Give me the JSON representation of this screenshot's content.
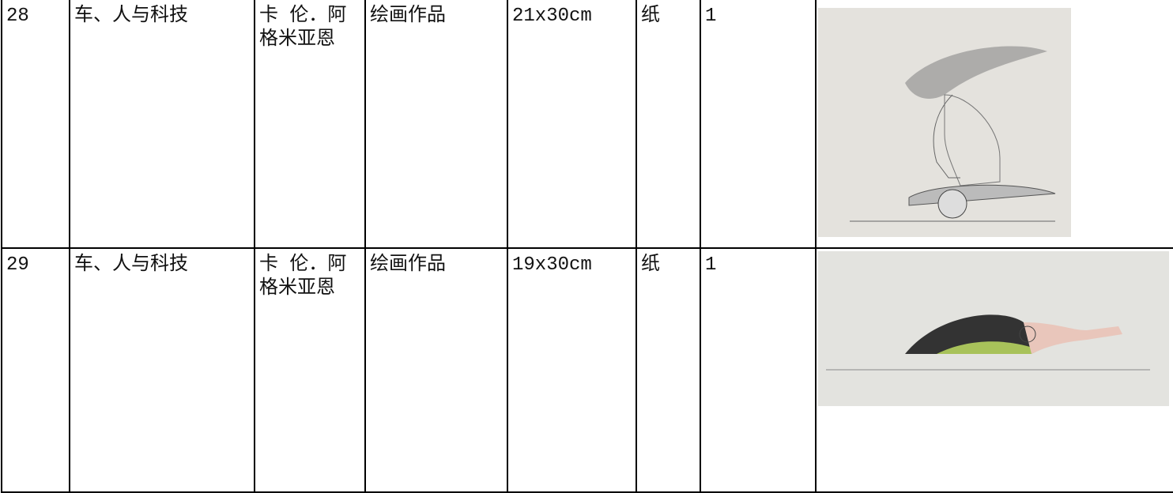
{
  "table": {
    "rows": [
      [
        "28",
        "车、人与科技",
        "卡 伦．阿格米亚恩",
        "绘画作品",
        "21x30cm",
        "纸",
        "1"
      ],
      [
        "29",
        "车、人与科技",
        "卡 伦．阿格米亚恩",
        "绘画作品",
        "19x30cm",
        "纸",
        "1"
      ]
    ]
  }
}
